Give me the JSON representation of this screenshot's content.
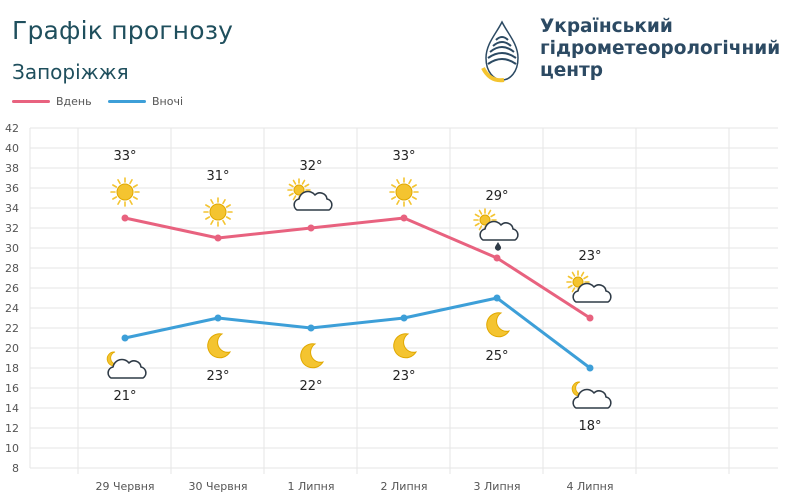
{
  "header": {
    "title": "Графік прогнозу",
    "city": "Запоріжжя"
  },
  "org": {
    "name_line1": "Український",
    "name_line2": "гідрометеорологічний",
    "name_line3": "центр",
    "logo_icon": "ukrhydromet-logo-icon"
  },
  "colors": {
    "day": "#e8627f",
    "night": "#3d9fd8",
    "sun": "#f4c430",
    "cloud_stroke": "#2f3b47",
    "grid": "#e6e6e6",
    "axis_text": "#555555"
  },
  "chart_data": {
    "type": "line",
    "categories": [
      "29 Червня",
      "30 Червня",
      "1 Липня",
      "2 Липня",
      "3 Липня",
      "4 Липня"
    ],
    "yticks": [
      8,
      10,
      12,
      14,
      16,
      18,
      20,
      22,
      24,
      26,
      28,
      30,
      32,
      34,
      36,
      38,
      40,
      42
    ],
    "ylim": [
      8,
      42
    ],
    "grid": true,
    "legend_position": "top-left",
    "series": [
      {
        "name": "Вдень",
        "values": [
          33,
          31,
          32,
          33,
          29,
          23
        ],
        "labels": [
          "33°",
          "31°",
          "32°",
          "33°",
          "29°",
          "23°"
        ],
        "icons": [
          "sun-icon",
          "sun-icon",
          "sun-cloud-icon",
          "sun-icon",
          "sun-cloud-rain-icon",
          "sun-cloud-icon"
        ]
      },
      {
        "name": "Вночі",
        "values": [
          21,
          23,
          22,
          23,
          25,
          18
        ],
        "labels": [
          "21°",
          "23°",
          "22°",
          "23°",
          "25°",
          "18°"
        ],
        "icons": [
          "moon-cloud-icon",
          "moon-icon",
          "moon-icon",
          "moon-icon",
          "moon-icon",
          "moon-cloud-icon"
        ]
      }
    ]
  }
}
